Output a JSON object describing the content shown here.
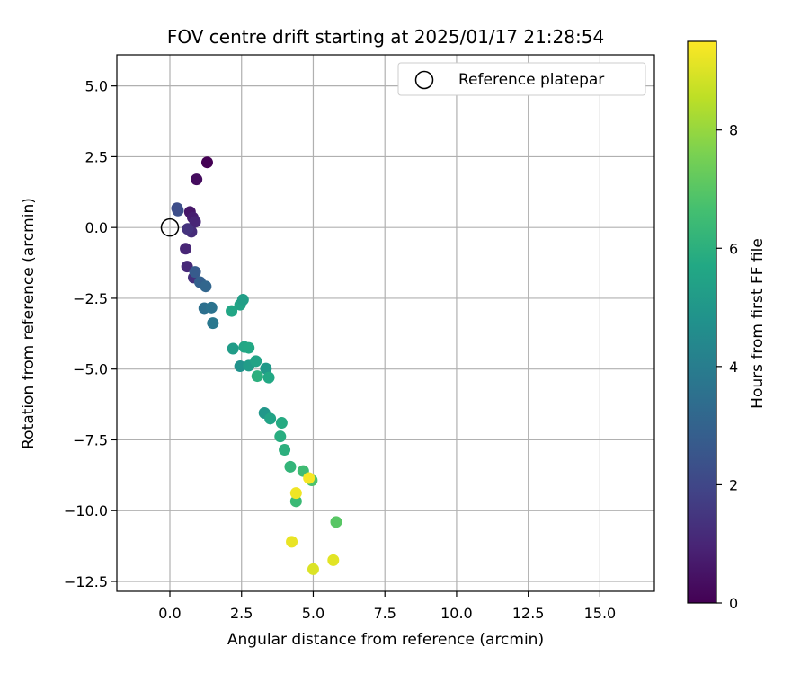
{
  "chart_data": {
    "type": "scatter",
    "title": "FOV centre drift starting at 2025/01/17 21:28:54",
    "xlabel": "Angular distance from reference (arcmin)",
    "ylabel": "Rotation from reference (arcmin)",
    "xlim": [
      -1.85,
      16.9
    ],
    "ylim": [
      -12.85,
      6.1
    ],
    "xticks": [
      0.0,
      2.5,
      5.0,
      7.5,
      10.0,
      12.5,
      15.0
    ],
    "yticks": [
      5.0,
      2.5,
      0.0,
      -2.5,
      -5.0,
      -7.5,
      -10.0,
      -12.5
    ],
    "xtick_labels": [
      "0.0",
      "2.5",
      "5.0",
      "7.5",
      "10.0",
      "12.5",
      "15.0"
    ],
    "ytick_labels": [
      "5.0",
      "2.5",
      "0.0",
      "−2.5",
      "−5.0",
      "−7.5",
      "−10.0",
      "−12.5"
    ],
    "grid": true,
    "legend": {
      "position": "top-right",
      "entries": [
        "Reference platepar"
      ]
    },
    "reference_point": {
      "name": "Reference platepar",
      "x": 0.0,
      "y": 0.0
    },
    "colorbar": {
      "label": "Hours from first FF file",
      "colormap": "viridis",
      "range": [
        0,
        9.5
      ],
      "ticks": [
        0,
        2,
        4,
        6,
        8
      ],
      "tick_labels": [
        "0",
        "2",
        "4",
        "6",
        "8"
      ]
    },
    "series": [
      {
        "points": [
          {
            "x": 1.3,
            "y": 2.3,
            "c": 0.0
          },
          {
            "x": 0.93,
            "y": 1.7,
            "c": 0.3
          },
          {
            "x": 0.7,
            "y": 0.55,
            "c": 0.6
          },
          {
            "x": 0.8,
            "y": 0.35,
            "c": 0.8
          },
          {
            "x": 0.88,
            "y": 0.2,
            "c": 1.0
          },
          {
            "x": 0.75,
            "y": -0.15,
            "c": 1.2
          },
          {
            "x": 0.62,
            "y": -0.05,
            "c": 1.4
          },
          {
            "x": 0.55,
            "y": -0.75,
            "c": 1.0
          },
          {
            "x": 0.6,
            "y": -1.38,
            "c": 1.1
          },
          {
            "x": 0.83,
            "y": -1.77,
            "c": 1.3
          },
          {
            "x": 0.28,
            "y": 0.6,
            "c": 2.3
          },
          {
            "x": 0.25,
            "y": 0.68,
            "c": 2.2
          },
          {
            "x": 0.88,
            "y": -1.57,
            "c": 2.7
          },
          {
            "x": 1.05,
            "y": -1.93,
            "c": 2.9
          },
          {
            "x": 1.25,
            "y": -2.08,
            "c": 3.1
          },
          {
            "x": 1.2,
            "y": -2.85,
            "c": 3.5
          },
          {
            "x": 1.45,
            "y": -2.83,
            "c": 3.6
          },
          {
            "x": 1.5,
            "y": -3.38,
            "c": 3.8
          },
          {
            "x": 2.15,
            "y": -2.95,
            "c": 5.6
          },
          {
            "x": 2.45,
            "y": -2.73,
            "c": 5.5
          },
          {
            "x": 2.55,
            "y": -2.55,
            "c": 5.3
          },
          {
            "x": 2.2,
            "y": -4.28,
            "c": 5.2
          },
          {
            "x": 2.6,
            "y": -4.22,
            "c": 5.6
          },
          {
            "x": 2.75,
            "y": -4.25,
            "c": 5.7
          },
          {
            "x": 2.45,
            "y": -4.9,
            "c": 4.8
          },
          {
            "x": 2.75,
            "y": -4.88,
            "c": 5.2
          },
          {
            "x": 3.0,
            "y": -4.72,
            "c": 5.5
          },
          {
            "x": 3.35,
            "y": -4.98,
            "c": 5.1
          },
          {
            "x": 3.05,
            "y": -5.25,
            "c": 6.0
          },
          {
            "x": 3.45,
            "y": -5.3,
            "c": 5.7
          },
          {
            "x": 3.3,
            "y": -6.55,
            "c": 5.0
          },
          {
            "x": 3.5,
            "y": -6.75,
            "c": 5.5
          },
          {
            "x": 3.9,
            "y": -6.9,
            "c": 5.8
          },
          {
            "x": 3.85,
            "y": -7.38,
            "c": 5.9
          },
          {
            "x": 4.0,
            "y": -7.85,
            "c": 6.0
          },
          {
            "x": 4.2,
            "y": -8.45,
            "c": 6.2
          },
          {
            "x": 4.65,
            "y": -8.6,
            "c": 6.5
          },
          {
            "x": 4.95,
            "y": -8.93,
            "c": 6.8
          },
          {
            "x": 4.4,
            "y": -9.67,
            "c": 6.4
          },
          {
            "x": 5.8,
            "y": -10.4,
            "c": 7.0
          },
          {
            "x": 4.85,
            "y": -8.85,
            "c": 9.4
          },
          {
            "x": 4.4,
            "y": -9.38,
            "c": 9.3
          },
          {
            "x": 4.25,
            "y": -11.1,
            "c": 9.2
          },
          {
            "x": 5.7,
            "y": -11.75,
            "c": 9.1
          },
          {
            "x": 5.0,
            "y": -12.07,
            "c": 9.0
          }
        ]
      }
    ]
  }
}
